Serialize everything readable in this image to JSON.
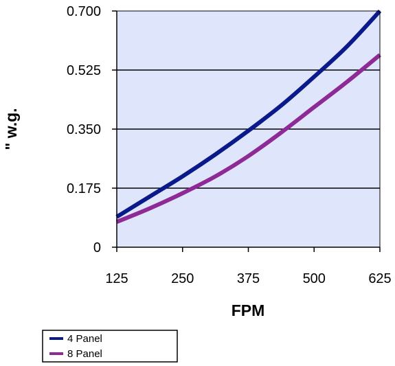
{
  "chart_data": {
    "type": "line",
    "title": "",
    "xlabel": "FPM",
    "ylabel": "\" w.g.",
    "x_ticks": [
      "125",
      "250",
      "375",
      "500",
      "625"
    ],
    "y_ticks": [
      "0",
      "0.175",
      "0.350",
      "0.525",
      "0.700"
    ],
    "xlim": [
      125,
      625
    ],
    "ylim": [
      0,
      0.7
    ],
    "grid": "horizontal",
    "plot_background": "#dfe6fb",
    "legend_position": "bottom-left",
    "series": [
      {
        "name": "4 Panel",
        "color": "#0a1a8a",
        "x": [
          125,
          187.5,
          250,
          312.5,
          375,
          437.5,
          500,
          562.5,
          625
        ],
        "y": [
          0.09,
          0.15,
          0.21,
          0.275,
          0.345,
          0.42,
          0.505,
          0.595,
          0.7
        ]
      },
      {
        "name": "8 Panel",
        "color": "#8e2a95",
        "x": [
          125,
          187.5,
          250,
          312.5,
          375,
          437.5,
          500,
          562.5,
          625
        ],
        "y": [
          0.075,
          0.115,
          0.16,
          0.21,
          0.27,
          0.34,
          0.415,
          0.49,
          0.57
        ]
      }
    ]
  }
}
